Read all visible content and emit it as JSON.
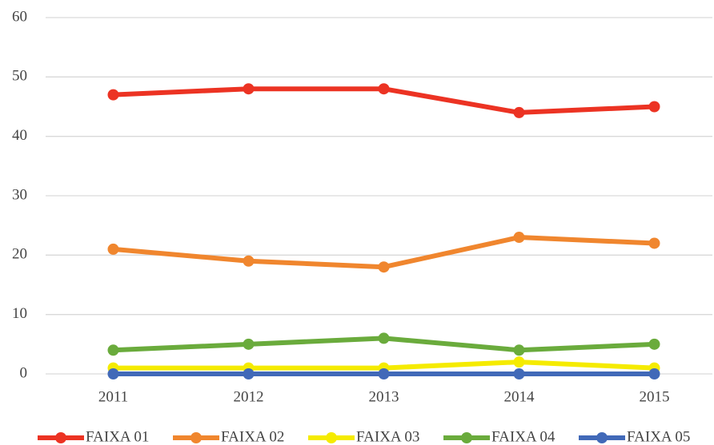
{
  "chart_data": {
    "type": "line",
    "categories": [
      "2011",
      "2012",
      "2013",
      "2014",
      "2015"
    ],
    "series": [
      {
        "name": "FAIXA 01",
        "color": "#ec3323",
        "values": [
          47,
          48,
          48,
          44,
          45
        ]
      },
      {
        "name": "FAIXA 02",
        "color": "#f0862e",
        "values": [
          21,
          19,
          18,
          23,
          22
        ]
      },
      {
        "name": "FAIXA 03",
        "color": "#f5eb00",
        "values": [
          1,
          1,
          1,
          2,
          1
        ]
      },
      {
        "name": "FAIXA 04",
        "color": "#6aab3c",
        "values": [
          4,
          5,
          6,
          4,
          5
        ]
      },
      {
        "name": "FAIXA 05",
        "color": "#4169b8",
        "values": [
          0,
          0,
          0,
          0,
          0
        ]
      }
    ],
    "ylim": [
      0,
      60
    ],
    "yticks": [
      0,
      10,
      20,
      30,
      40,
      50,
      60
    ],
    "grid": true,
    "legend": "bottom"
  }
}
